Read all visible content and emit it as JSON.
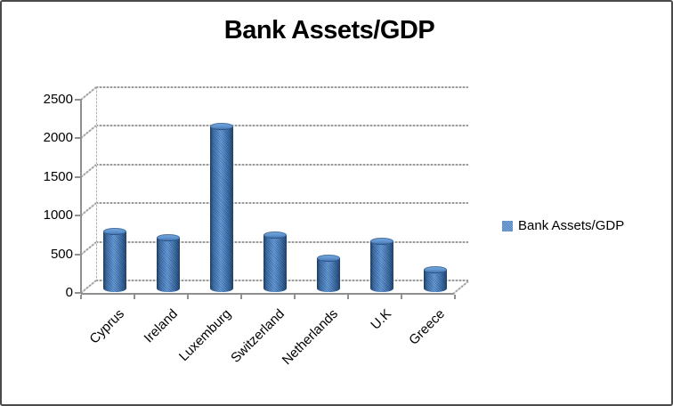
{
  "window": {
    "background": "#ffffff",
    "border_color": "#4a4a4a"
  },
  "chart_data": {
    "type": "bar",
    "subtype": "3d-cylinder",
    "title": "Bank Assets/GDP",
    "categories": [
      "Cyprus",
      "Ireland",
      "Luxemburg",
      "Switzerland",
      "Netherlands",
      "U.K",
      "Greece"
    ],
    "series": [
      {
        "name": "Bank Assets/GDP",
        "color": "#4f81bd",
        "values": [
          740,
          655,
          2100,
          690,
          390,
          605,
          240
        ]
      }
    ],
    "xlabel": "",
    "ylabel": "",
    "ylim": [
      0,
      2500
    ],
    "yticks": [
      0,
      500,
      1000,
      1500,
      2000,
      2500
    ],
    "grid": true,
    "legend_position": "right"
  },
  "legend": {
    "label": "Bank Assets/GDP",
    "marker_color": "#4f81bd"
  },
  "colors": {
    "bar_main": "#4f81bd",
    "bar_dark": "#16365c",
    "bar_light": "#7babdf",
    "gridline": "#9a9a9a",
    "axis": "#8f8f8f",
    "text": "#000000"
  }
}
